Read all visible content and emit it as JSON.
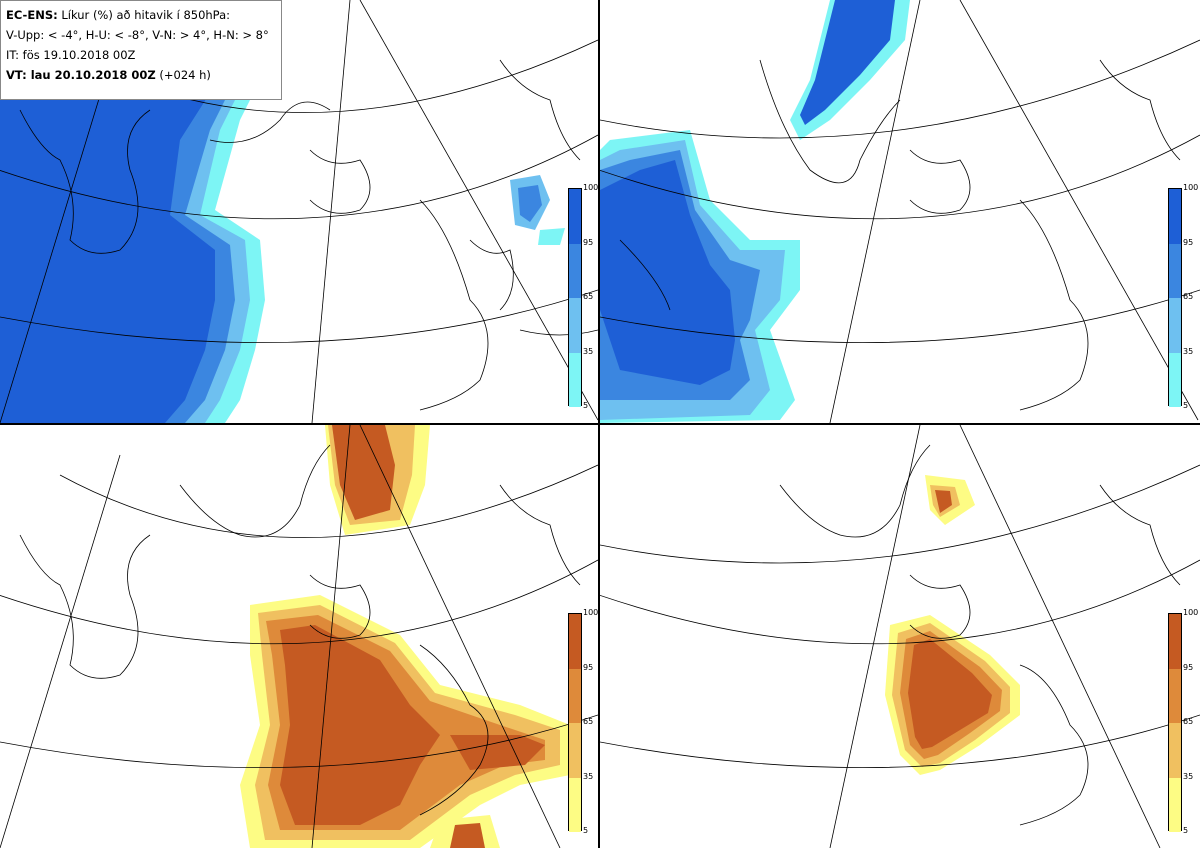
{
  "header": {
    "model": "EC-ENS:",
    "title": "Líkur (%) að hitavik í 850hPa:",
    "thresholds": "V-Upp: < -4°, H-U: < -8°, V-N: > 4°, H-N: > 8°",
    "init_time": "IT: fös 19.10.2018 00Z",
    "valid_label": "VT: lau 20.10.2018 00Z",
    "lead": "(+024 h)"
  },
  "legend": {
    "ticks": [
      "100",
      "95",
      "65",
      "35",
      "5"
    ],
    "cold_colors": [
      "#1e5fd6",
      "#3b86e0",
      "#6ec0f0",
      "#7df5f5"
    ],
    "warm_colors": [
      "#c55a22",
      "#de8a3a",
      "#f0c060",
      "#fdfc84"
    ]
  },
  "panels": [
    {
      "id": "v-upp",
      "scheme": "cold"
    },
    {
      "id": "h-u",
      "scheme": "cold"
    },
    {
      "id": "v-n",
      "scheme": "warm"
    },
    {
      "id": "h-n",
      "scheme": "warm"
    }
  ]
}
